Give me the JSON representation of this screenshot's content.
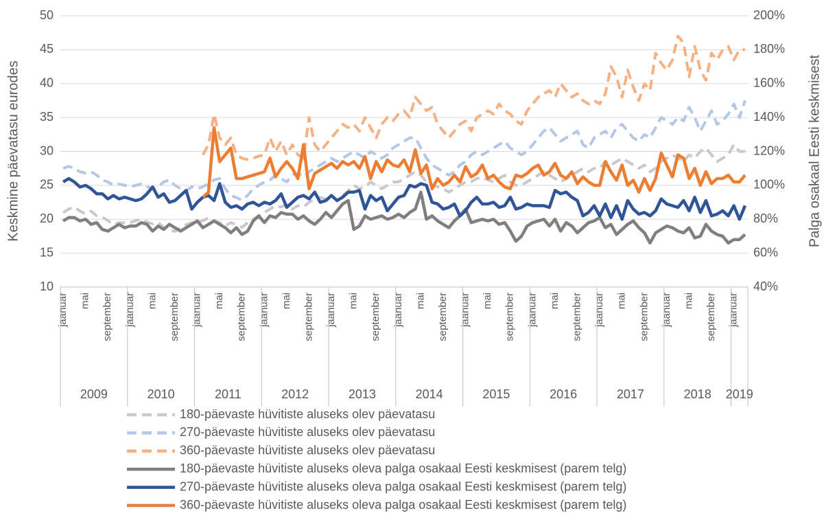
{
  "chart_data": {
    "type": "line",
    "ylabel": "Keskmine päevatasu eurodes",
    "y2label": "Palga osakaal Eesti keskmisest",
    "ylim": [
      10,
      50
    ],
    "yticks": [
      10,
      15,
      20,
      25,
      30,
      35,
      40,
      45,
      50
    ],
    "y2lim": [
      40,
      200
    ],
    "y2ticks": [
      {
        "value": 40,
        "label": "40%"
      },
      {
        "value": 60,
        "label": "60%"
      },
      {
        "value": 80,
        "label": "80%"
      },
      {
        "value": 100,
        "label": "100%"
      },
      {
        "value": 120,
        "label": "120%"
      },
      {
        "value": 140,
        "label": "140%"
      },
      {
        "value": 160,
        "label": "160%"
      },
      {
        "value": 180,
        "label": "180%"
      },
      {
        "value": 200,
        "label": "200%"
      }
    ],
    "years": [
      "2009",
      "2010",
      "2011",
      "2012",
      "2013",
      "2014",
      "2015",
      "2016",
      "2017",
      "2018",
      "2019"
    ],
    "categories": [
      "jaanuar",
      null,
      null,
      null,
      "mai",
      null,
      null,
      null,
      "september",
      null,
      null,
      null,
      "jaanuar",
      null,
      null,
      null,
      "mai",
      null,
      null,
      null,
      "september",
      null,
      null,
      null,
      "jaanuar",
      null,
      null,
      null,
      "mai",
      null,
      null,
      null,
      "september",
      null,
      null,
      null,
      "jaanuar",
      null,
      null,
      null,
      "mai",
      null,
      null,
      null,
      "september",
      null,
      null,
      null,
      "jaanuar",
      null,
      null,
      null,
      "mai",
      null,
      null,
      null,
      "september",
      null,
      null,
      null,
      "jaanuar",
      null,
      null,
      null,
      "mai",
      null,
      null,
      null,
      "september",
      null,
      null,
      null,
      "jaanuar",
      null,
      null,
      null,
      "mai",
      null,
      null,
      null,
      "september",
      null,
      null,
      null,
      "jaanuar",
      null,
      null,
      null,
      "mai",
      null,
      null,
      null,
      "september",
      null,
      null,
      null,
      "jaanuar",
      null,
      null,
      null,
      "mai",
      null,
      null,
      null,
      "september",
      null,
      null,
      null,
      "jaanuar",
      null,
      null,
      null,
      "mai",
      null,
      null,
      null,
      "september",
      null,
      null,
      null,
      "jaanuar",
      null,
      null
    ],
    "series": [
      {
        "name": "180-päevaste hüvitiste aluseks olev päevatasu",
        "color": "#c9c9c9",
        "dashed": true,
        "values": [
          21,
          21.5,
          21.8,
          21.2,
          20.8,
          21.2,
          20.5,
          20.3,
          19.8,
          19.2,
          19.5,
          19.5,
          19.5,
          19.8,
          20,
          19.6,
          19.3,
          19.5,
          18.8,
          18.5,
          18.2,
          18.8,
          19.2,
          19.5,
          19.5,
          19.8,
          20.2,
          19.8,
          19.5,
          19,
          19.5,
          19.2,
          18.8,
          19.5,
          20,
          20.5,
          21,
          21.5,
          22,
          21.8,
          22.2,
          21.5,
          22,
          21.8,
          22.5,
          23,
          23.2,
          23,
          23.5,
          22.8,
          23.5,
          24.2,
          25,
          24.5,
          24.8,
          25.5,
          25,
          24.5,
          25,
          25.5,
          25.5,
          26,
          26.5,
          27,
          26.5,
          25.5,
          25,
          24.8,
          24.5,
          24,
          24.5,
          25,
          25.5,
          25.5,
          26,
          26.2,
          25.8,
          25.5,
          26,
          26.5,
          25.5,
          25,
          25,
          25.5,
          26,
          26.5,
          27,
          26.5,
          26,
          25.5,
          26,
          26.5,
          27,
          27.5,
          27,
          27.5,
          27.5,
          28.5,
          28,
          28.5,
          29,
          28.5,
          28,
          27.5,
          28,
          27,
          27.5,
          28.5,
          29,
          29.5,
          29,
          28.5,
          29.5,
          29,
          30,
          30.5,
          29.5,
          28.5,
          29,
          29.5,
          31,
          30,
          30
        ]
      },
      {
        "name": "270-päevaste hüvitiste aluseks olev päevatasu",
        "color": "#b4c7e7",
        "dashed": true,
        "values": [
          27.5,
          27.8,
          27.5,
          27,
          26.8,
          27,
          26.5,
          25.8,
          25.5,
          25,
          25.2,
          25,
          24.8,
          25,
          25.2,
          24.8,
          24.5,
          24.8,
          25.5,
          25.8,
          25,
          24.5,
          24.2,
          24.8,
          24.5,
          24.8,
          25.2,
          25.8,
          26,
          24.5,
          23.5,
          23.2,
          22.8,
          23.5,
          24.5,
          25,
          25.5,
          25.8,
          26.5,
          26,
          25.5,
          26.5,
          26.8,
          26.2,
          27,
          27.5,
          28,
          28.5,
          29,
          28.5,
          29,
          29.5,
          30,
          29.5,
          29,
          30,
          29.5,
          29,
          29.5,
          30.5,
          31,
          31.5,
          32,
          32,
          30.5,
          29,
          28,
          27.5,
          27,
          26.5,
          27,
          28,
          28.5,
          29.5,
          30,
          29.5,
          30,
          30.5,
          31,
          31.5,
          30.5,
          30,
          29.5,
          30,
          31,
          32,
          33,
          33.5,
          32.5,
          31.5,
          32,
          32.5,
          33,
          31,
          30.5,
          32,
          32.5,
          33,
          32,
          33.5,
          34,
          33,
          32,
          31.5,
          32.5,
          32,
          33.5,
          35,
          34.5,
          34,
          35,
          34.5,
          36.5,
          35,
          33,
          34.5,
          36,
          34,
          34.5,
          35.5,
          37,
          35,
          37.5
        ]
      },
      {
        "name": "360-päevaste hüvitiste aluseks olev päevatasu",
        "color": "#f4b183",
        "dashed": true,
        "values": [
          null,
          null,
          null,
          null,
          null,
          null,
          null,
          null,
          null,
          null,
          null,
          null,
          null,
          null,
          null,
          null,
          null,
          null,
          null,
          null,
          null,
          null,
          null,
          null,
          null,
          29.5,
          31,
          35.5,
          32,
          31,
          32,
          29.5,
          29,
          28.8,
          29,
          29.3,
          29.5,
          32,
          30,
          31.5,
          29.5,
          31,
          29.5,
          29,
          35,
          31,
          30,
          31,
          32,
          33,
          34,
          33.5,
          34,
          33,
          35,
          33.5,
          32,
          34,
          35,
          34.5,
          35.5,
          36,
          35,
          38,
          37,
          36,
          36.5,
          34,
          33,
          32,
          33,
          34,
          34.5,
          33,
          35,
          35.5,
          36,
          35.5,
          37,
          36,
          35.5,
          34.5,
          34,
          36,
          37,
          38,
          38.5,
          39,
          38,
          40,
          39,
          38,
          38.5,
          37.5,
          37,
          37.5,
          37,
          38.5,
          42.5,
          41,
          38,
          42,
          39.5,
          37.5,
          40,
          39,
          44.5,
          43,
          42,
          43.5,
          47,
          46,
          41,
          45.5,
          42,
          40.5,
          44.5,
          43.5,
          45,
          45.5,
          43.5,
          45,
          45
        ]
      },
      {
        "name": "180-päevaste hüvitiste aluseks oleva palga osakaal Eesti keskmisest (parem telg)",
        "color": "#7f7f7f",
        "dashed": false,
        "axis": "y2",
        "values": [
          79,
          81,
          81,
          79,
          80,
          77,
          78,
          74,
          73,
          75,
          77,
          75,
          76,
          76,
          78,
          77,
          73,
          76,
          74,
          77,
          75,
          73,
          75,
          77,
          79,
          75,
          77,
          79,
          77,
          75,
          72,
          75,
          71,
          73,
          79,
          82,
          78,
          82,
          81,
          84,
          83,
          83,
          80,
          82,
          79,
          77,
          80,
          84,
          81,
          85,
          89,
          91,
          74,
          76,
          82,
          80,
          81,
          82,
          80,
          81,
          83,
          81,
          84,
          86,
          96,
          80,
          82,
          79,
          77,
          75,
          79,
          82,
          86,
          78,
          79,
          80,
          79,
          80,
          77,
          78,
          73,
          67,
          70,
          76,
          78,
          79,
          80,
          76,
          80,
          73,
          78,
          76,
          72,
          75,
          78,
          79,
          81,
          75,
          77,
          71,
          74,
          77,
          79,
          75,
          72,
          66,
          72,
          74,
          76,
          75,
          73,
          72,
          75,
          69,
          70,
          77,
          73,
          71,
          70,
          66,
          68,
          68,
          71
        ]
      },
      {
        "name": "270-päevaste hüvitiste aluseks oleva palga osakaal Eesti keskmisest (parem telg)",
        "color": "#2f5597",
        "dashed": false,
        "axis": "y2",
        "values": [
          102,
          104,
          102,
          99,
          100,
          98,
          95,
          95,
          92,
          94,
          92,
          93,
          92,
          91,
          92,
          95,
          99,
          93,
          95,
          90,
          91,
          94,
          97,
          86,
          90,
          93,
          94,
          91,
          101,
          90,
          87,
          88,
          86,
          89,
          90,
          88,
          90,
          89,
          91,
          95,
          87,
          90,
          93,
          94,
          92,
          96,
          90,
          91,
          94,
          91,
          93,
          96,
          96,
          97,
          86,
          94,
          91,
          93,
          85,
          89,
          93,
          94,
          100,
          99,
          101,
          100,
          90,
          89,
          86,
          87,
          89,
          82,
          85,
          90,
          93,
          89,
          89,
          90,
          87,
          88,
          93,
          86,
          87,
          89,
          88,
          88,
          88,
          87,
          97,
          95,
          96,
          93,
          91,
          82,
          84,
          88,
          82,
          89,
          81,
          88,
          80,
          91,
          86,
          83,
          84,
          82,
          85,
          92,
          89,
          88,
          87,
          91,
          85,
          93,
          84,
          91,
          82,
          83,
          85,
          82,
          88,
          80,
          88
        ]
      },
      {
        "name": "360-päevaste hüvitiste aluseks oleva palga osakaal Eesti keskmisest (parem telg)",
        "color": "#ed7d31",
        "dashed": false,
        "axis": "y2",
        "values": [
          null,
          null,
          null,
          null,
          null,
          null,
          null,
          null,
          null,
          null,
          null,
          null,
          null,
          null,
          null,
          null,
          null,
          null,
          null,
          null,
          null,
          null,
          null,
          null,
          null,
          93,
          96,
          134,
          114,
          118,
          122,
          104,
          104,
          105,
          106,
          107,
          108,
          116,
          105,
          110,
          114,
          110,
          104,
          124,
          98,
          107,
          109,
          111,
          113,
          110,
          114,
          112,
          114,
          110,
          117,
          104,
          114,
          108,
          115,
          112,
          111,
          115,
          108,
          121,
          107,
          112,
          98,
          104,
          100,
          102,
          106,
          102,
          111,
          105,
          107,
          112,
          104,
          106,
          102,
          99,
          98,
          106,
          105,
          107,
          110,
          112,
          106,
          108,
          113,
          106,
          104,
          108,
          101,
          105,
          102,
          100,
          100,
          114,
          108,
          103,
          112,
          100,
          103,
          96,
          104,
          97,
          104,
          119,
          112,
          105,
          118,
          116,
          104,
          110,
          100,
          108,
          101,
          104,
          104,
          106,
          102,
          102,
          106
        ]
      }
    ]
  }
}
